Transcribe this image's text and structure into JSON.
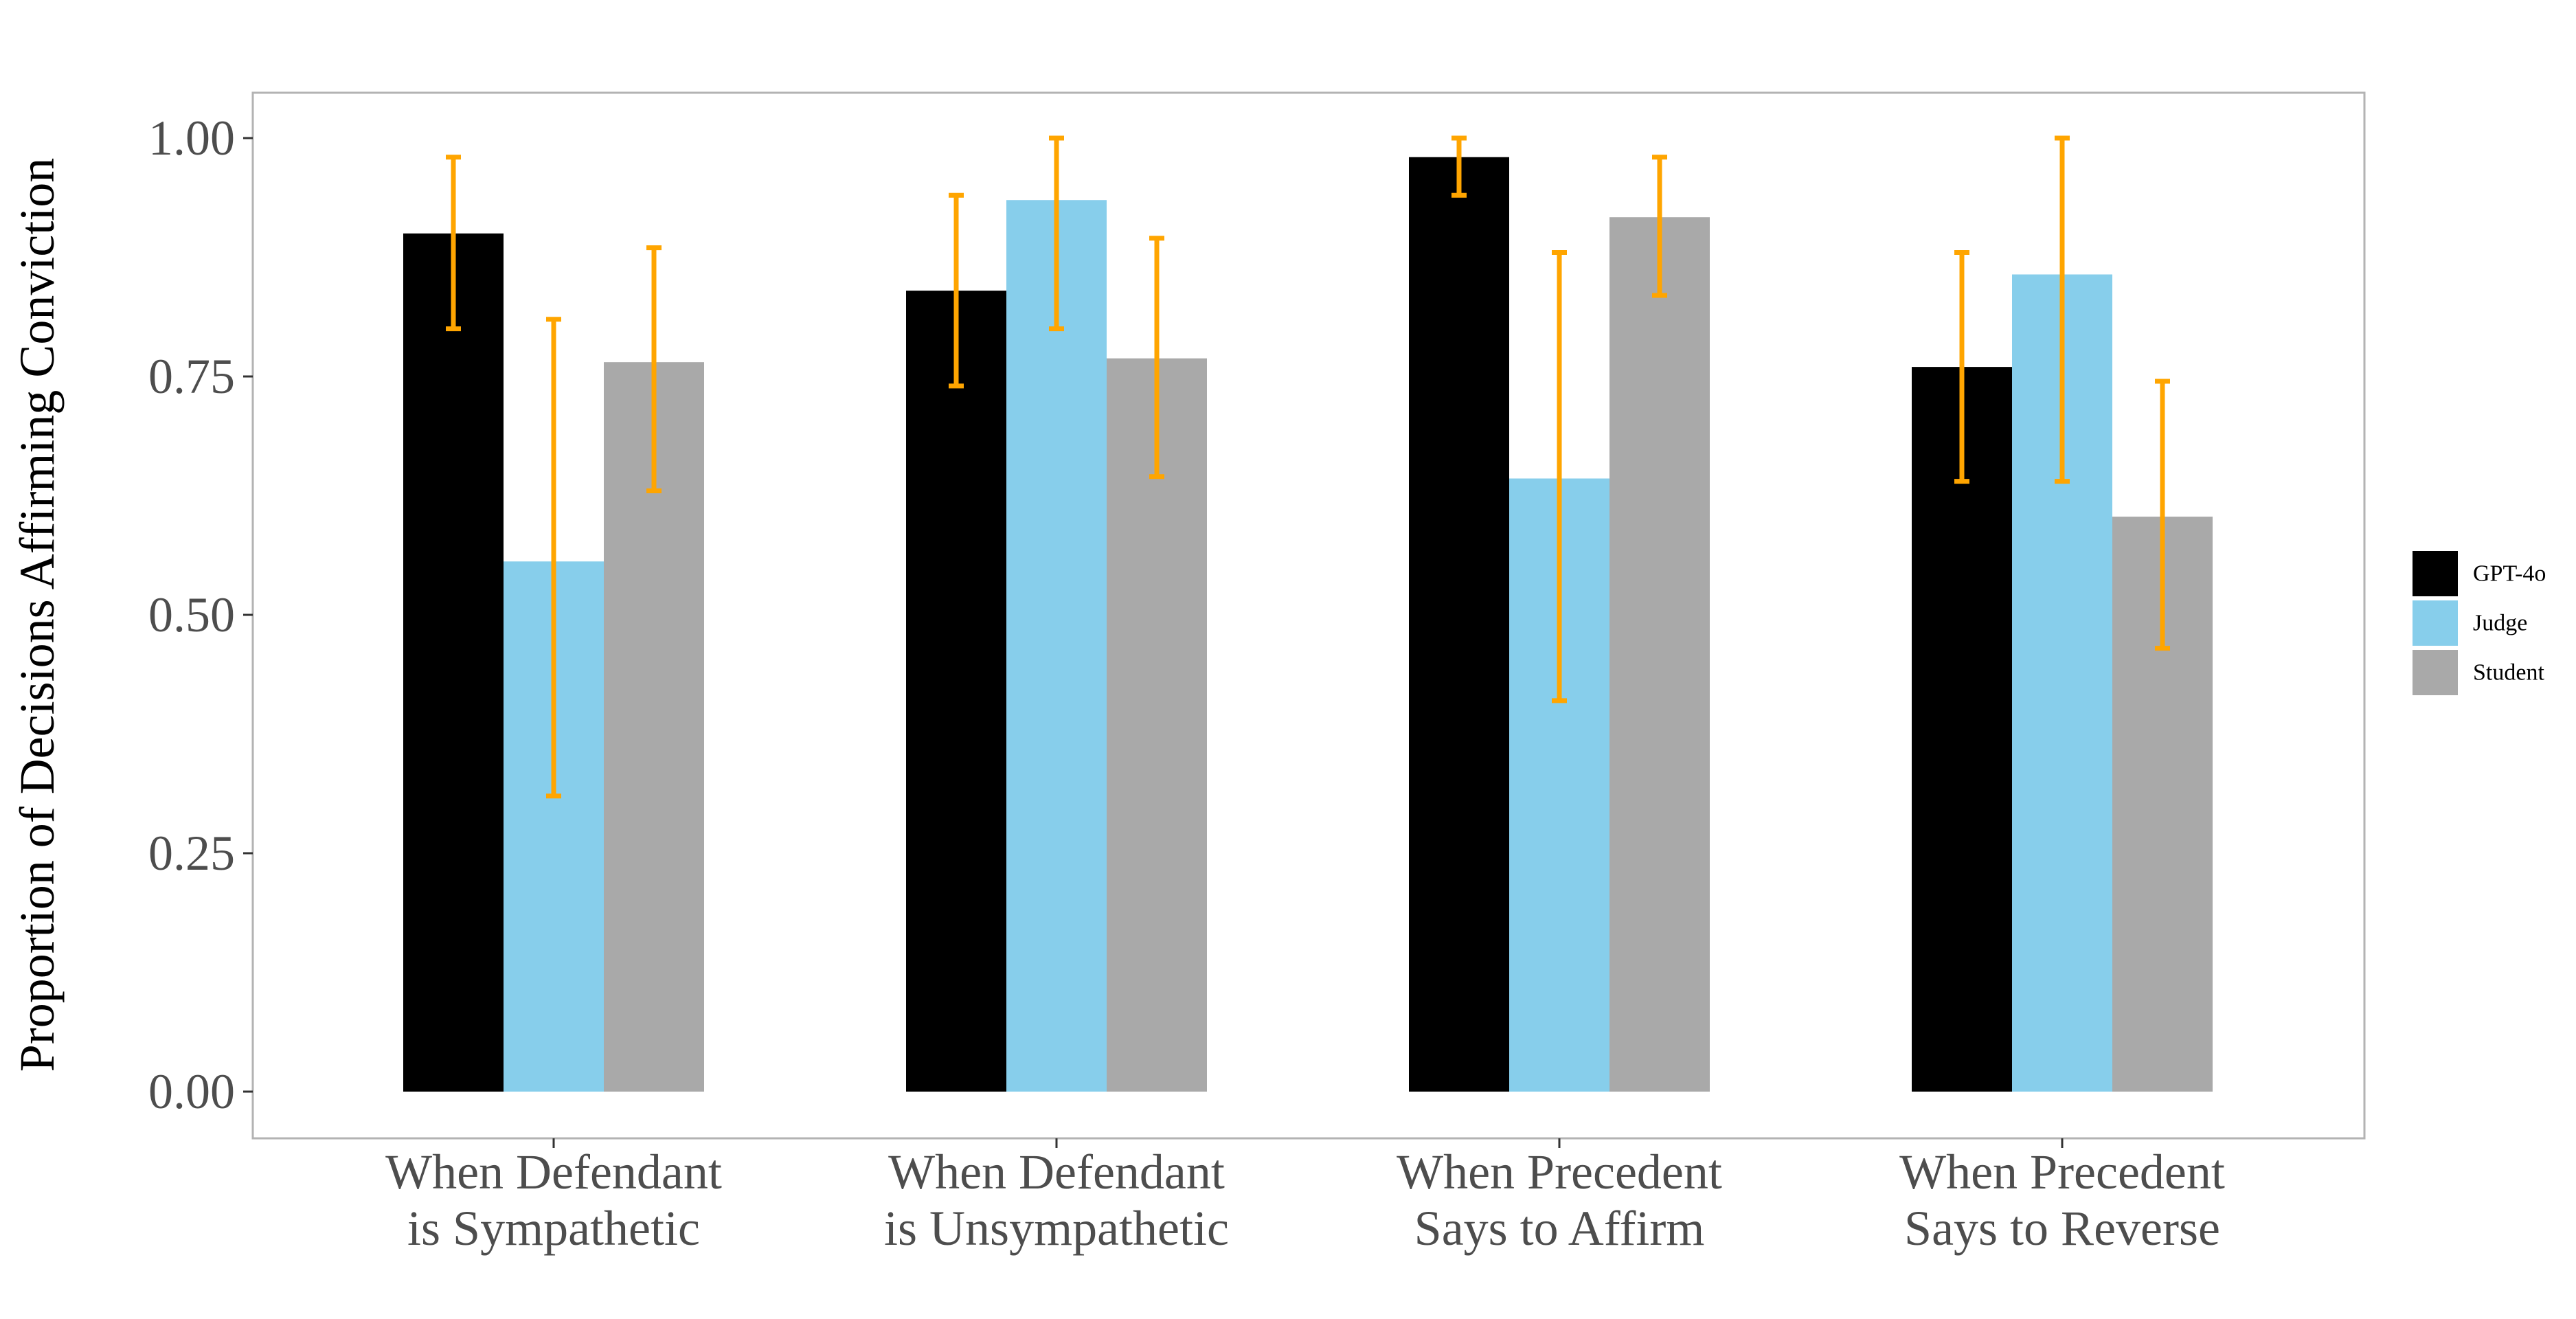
{
  "chart_data": {
    "type": "bar",
    "title": "",
    "xlabel": "",
    "ylabel": "Proportion of Decisions Affirming Conviction",
    "ylim": [
      0,
      1.05
    ],
    "yticks": [
      "0.00",
      "0.25",
      "0.50",
      "0.75",
      "1.00"
    ],
    "grid": false,
    "legend_position": "right",
    "categories": [
      [
        "When Defendant",
        "is Sympathetic"
      ],
      [
        "When Defendant",
        "is Unsympathetic"
      ],
      [
        "When Precedent",
        "Says to Affirm"
      ],
      [
        "When Precedent",
        "Says to Reverse"
      ]
    ],
    "series": [
      {
        "name": "GPT-4o",
        "color": "#000000",
        "values": [
          0.9,
          0.84,
          0.98,
          0.76
        ],
        "error_low": [
          0.8,
          0.74,
          0.94,
          0.64
        ],
        "error_high": [
          0.98,
          0.94,
          1.0,
          0.88
        ]
      },
      {
        "name": "Judge",
        "color": "#87CEEB",
        "values": [
          0.556,
          0.935,
          0.643,
          0.857
        ],
        "error_low": [
          0.31,
          0.8,
          0.41,
          0.64
        ],
        "error_high": [
          0.81,
          1.0,
          0.88,
          1.0
        ]
      },
      {
        "name": "Student",
        "color": "#A9A9A9",
        "values": [
          0.765,
          0.769,
          0.917,
          0.603
        ],
        "error_low": [
          0.63,
          0.645,
          0.835,
          0.465
        ],
        "error_high": [
          0.885,
          0.895,
          0.98,
          0.745
        ]
      }
    ],
    "error_bar_color": "#FFA500"
  }
}
